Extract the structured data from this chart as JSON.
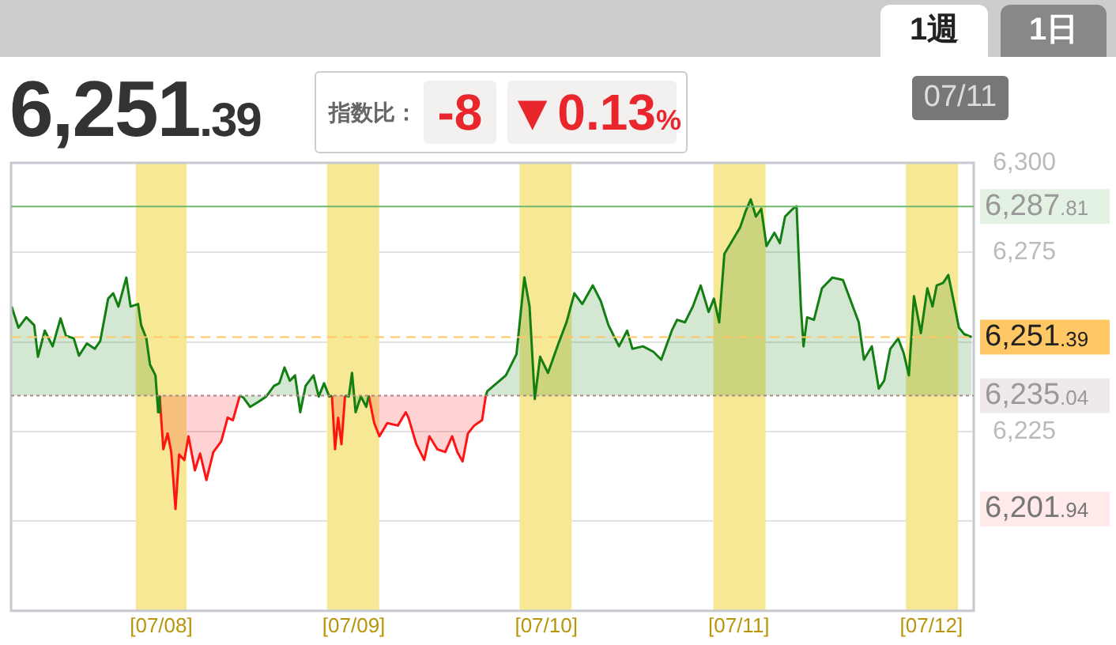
{
  "chart_data": {
    "type": "area",
    "title": "6,251.39",
    "annotations": [
      "指数比：",
      "-8",
      "▼0.13%",
      "1週",
      "1日",
      "07/11",
      "6,201.94"
    ],
    "series": [
      {
        "color": "#137f13",
        "x": [
          "--07-07T05:21",
          "--07-07T06:12",
          "--07-07T07:11",
          "--07-07T08:10",
          "--07-07T08:38",
          "--07-07T09:29",
          "--07-07T10:28",
          "--07-07T11:27",
          "--07-07T12:07",
          "--07-07T13:06",
          "--07-07T13:45",
          "--07-07T14:44",
          "--07-07T15:43",
          "--07-07T16:24",
          "--07-07T17:23",
          "--07-07T18:01",
          "--07-07T18:40",
          "--07-07T19:39",
          "--07-07T20:11",
          "--07-07T21:07",
          "--07-07T21:30",
          "--07-07T22:09",
          "--07-07T22:36",
          "--07-07T23:17",
          "--07-07T23:37",
          "--07-07T23:48",
          "--07-08T04:48",
          "--07-08T09:48",
          "--07-08T10:15",
          "--07-08T11:05",
          "--07-08T12:06",
          "--07-08T13:05",
          "--07-08T14:04",
          "--07-08T14:43",
          "--07-08T15:22",
          "--07-08T16:02",
          "--07-08T16:41",
          "--07-08T17:20",
          "--07-08T18:00",
          "--07-08T18:59",
          "--07-08T19:38",
          "--07-08T20:18",
          "--07-08T20:57",
          "--07-08T21:17",
          "--07-08T22:05",
          "--07-08T22:55",
          "--07-08T23:23",
          "--07-08T23:47",
          "--07-09T00:14",
          "--07-09T00:53",
          "--07-09T01:34",
          "--07-09T01:52",
          "--07-09T07:41",
          "--07-09T16:28",
          "--07-09T16:39",
          "--07-09T18:58",
          "--07-09T20:17",
          "--07-09T21:16",
          "--07-09T21:55",
          "--07-09T22:34",
          "--07-09T23:14",
          "--07-10T00:13",
          "--07-10T01:31",
          "--07-10T02:31",
          "--07-10T03:30",
          "--07-10T04:29",
          "--07-10T05:48",
          "--07-10T06:48",
          "--07-10T07:45",
          "--07-10T09:04",
          "--07-10T10:05",
          "--07-10T10:44",
          "--07-10T12:03",
          "--07-10T13:21",
          "--07-10T14:20",
          "--07-10T15:39",
          "--07-10T16:18",
          "--07-10T17:17",
          "--07-10T18:16",
          "--07-10T19:15",
          "--07-10T20:14",
          "--07-10T20:54",
          "--07-10T21:33",
          "--07-10T22:12",
          "--07-10T23:11",
          "--07-11T00:10",
          "--07-11T00:50",
          "--07-11T01:29",
          "--07-11T02:08",
          "--07-11T02:48",
          "--07-11T03:27",
          "--07-11T04:26",
          "--07-11T05:07",
          "--07-11T05:46",
          "--07-11T06:45",
          "--07-11T07:12",
          "--07-11T07:44",
          "--07-11T08:04",
          "--07-11T08:31",
          "--07-11T09:22",
          "--07-11T10:22",
          "--07-11T11:40",
          "--07-11T12:59",
          "--07-11T13:58",
          "--07-11T14:57",
          "--07-11T15:36",
          "--07-11T16:35",
          "--07-11T17:27",
          "--07-11T18:07",
          "--07-11T18:53",
          "--07-11T19:52",
          "--07-11T20:33",
          "--07-11T21:12",
          "--07-11T21:50",
          "--07-11T22:42",
          "--07-11T23:30",
          "--07-12T00:09",
          "--07-12T00:40",
          "--07-12T01:28",
          "--07-12T02:07",
          "--07-12T02:47",
          "--07-12T03:26",
          "--07-12T04:06",
          "--07-12T05:02"
        ],
        "values": [
          6259.9,
          6254.0,
          6256.9,
          6254.7,
          6245.9,
          6253.2,
          6248.8,
          6256.6,
          6251.8,
          6251.0,
          6246.2,
          6249.6,
          6248.1,
          6250.3,
          6262.1,
          6263.6,
          6259.9,
          6268.0,
          6259.9,
          6260.6,
          6254.7,
          6251.0,
          6243.7,
          6240.7,
          6230.4,
          6235.04,
          null,
          6235.04,
          6234.5,
          6231.9,
          6233.3,
          6234.8,
          6237.8,
          6238.5,
          6242.9,
          6239.2,
          6240.7,
          6230.4,
          6237.8,
          6240.7,
          6234.8,
          6238.5,
          6234.8,
          6235.04,
          null,
          6235.04,
          6234.8,
          6241.4,
          6230.4,
          6234.8,
          6231.9,
          6235.04,
          null,
          6235.04,
          6236.3,
          6240.7,
          6246.6,
          6268.0,
          6259.9,
          6234.1,
          6245.9,
          6241.4,
          6249.6,
          6255.5,
          6263.6,
          6260.6,
          6265.8,
          6261.4,
          6254.7,
          6248.8,
          6253.2,
          6248.1,
          6248.8,
          6247.3,
          6245.1,
          6253.2,
          6256.2,
          6255.5,
          6259.9,
          6265.8,
          6258.4,
          6262.1,
          6255.5,
          6274.6,
          6278.3,
          6282.0,
          6286.4,
          6289.8,
          6285.0,
          6287.2,
          6276.8,
          6280.5,
          6277.6,
          6285.0,
          6287.2,
          6287.9,
          6259.9,
          6248.8,
          6256.9,
          6256.2,
          6265.0,
          6268.0,
          6267.3,
          6261.4,
          6255.5,
          6245.1,
          6248.8,
          6237.0,
          6239.2,
          6248.1,
          6251.0,
          6246.9,
          6240.7,
          6262.8,
          6252.5,
          6265.0,
          6259.9,
          6265.8,
          6266.5,
          6268.7,
          6261.4,
          6254.0,
          6252.2,
          6251.4
        ]
      },
      {
        "color": "#ff1414",
        "x": [
          "--07-07T23:48",
          "--07-08T00:16",
          "--07-08T00:48",
          "--07-08T01:15",
          "--07-08T01:47",
          "--07-08T02:14",
          "--07-08T02:53",
          "--07-08T03:24",
          "--07-08T04:12",
          "--07-08T04:51",
          "--07-08T05:38",
          "--07-08T06:30",
          "--07-08T07:29",
          "--07-08T08:17",
          "--07-08T08:56",
          "--07-08T09:48",
          "--07-08T14:53",
          "--07-08T21:17",
          "--07-08T21:40",
          "--07-08T22:03",
          "--07-08T22:28",
          "--07-08T22:55",
          "--07-09T00:29",
          "--07-09T01:52",
          "--07-09T02:33",
          "--07-09T03:12",
          "--07-09T04:11",
          "--07-09T05:30",
          "--07-09T06:29",
          "--07-09T06:49",
          "--07-09T07:48",
          "--07-09T08:47",
          "--07-09T09:26",
          "--07-09T10:25",
          "--07-09T11:24",
          "--07-09T12:16",
          "--07-09T12:55",
          "--07-09T13:34",
          "--07-09T14:14",
          "--07-09T15:01",
          "--07-09T16:00",
          "--07-09T16:28"
        ],
        "values": [
          6235.04,
          6220.1,
          6224.5,
          6219.3,
          6203.4,
          6218.6,
          6217.1,
          6223.7,
          6214.2,
          6218.9,
          6211.5,
          6219.3,
          6222.3,
          6228.9,
          6228.2,
          6235.04,
          null,
          6235.04,
          6220.1,
          6228.9,
          6221.5,
          6235.04,
          null,
          6235.04,
          6227.4,
          6223.7,
          6227.4,
          6226.7,
          6230.4,
          6228.9,
          6221.5,
          6217.1,
          6223.7,
          6220.1,
          6219.3,
          6223.7,
          6219.3,
          6216.7,
          6224.5,
          6226.7,
          6228.2,
          6235.04
        ]
      }
    ],
    "xlim": [
      "--07-07T05:17",
      "--07-12T05:17"
    ],
    "xticks": [
      {
        "value": "--07-08",
        "label": "[07/08]"
      },
      {
        "value": "--07-09",
        "label": "[07/09]"
      },
      {
        "value": "--07-10",
        "label": "[07/10]"
      },
      {
        "value": "--07-11",
        "label": "[07/11]"
      },
      {
        "value": "--07-12",
        "label": "[07/12]"
      }
    ],
    "ylim": [
      6175,
      6300
    ],
    "yticks": [
      {
        "value": 6200,
        "label": null
      },
      {
        "value": 6225,
        "label": "6,225"
      },
      {
        "value": 6250,
        "label": null
      },
      {
        "value": 6275,
        "label": "6,275"
      },
      {
        "value": 6300,
        "label": "6,300"
      }
    ],
    "ref_lines": [
      {
        "axis": "y",
        "value": 6235.04,
        "label": "6,235.04",
        "color": "#a88888",
        "line_style": "dotted"
      },
      {
        "axis": "y",
        "value": 6287.81,
        "label": "6,287.81",
        "color": "#6fb86f",
        "line_style": "solid"
      },
      {
        "axis": "y",
        "value": 6251.39,
        "label": "6,251.39",
        "color": "#ffc864",
        "line_style": "dashed"
      }
    ],
    "bands": [
      {
        "axis": "x",
        "from": "--07-07T20:50",
        "to": "--07-08T03:10",
        "color": "#f7e896"
      },
      {
        "axis": "x",
        "from": "--07-08T20:40",
        "to": "--07-09T03:10",
        "color": "#f7e896"
      },
      {
        "axis": "x",
        "from": "--07-09T20:40",
        "to": "--07-10T03:10",
        "color": "#f7e896"
      },
      {
        "axis": "x",
        "from": "--07-10T20:50",
        "to": "--07-11T03:20",
        "color": "#f7e896"
      },
      {
        "axis": "x",
        "from": "--07-11T20:50",
        "to": "--07-12T03:20",
        "color": "#f7e896"
      }
    ],
    "grid": "y",
    "legend": false,
    "marker": "none",
    "line_style": "solid"
  }
}
